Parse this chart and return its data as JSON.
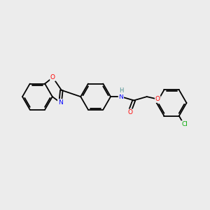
{
  "background_color": "#ececec",
  "bond_color": "#000000",
  "atom_colors": {
    "O": "#ff0000",
    "N": "#0000ff",
    "Cl": "#00aa00",
    "H": "#4a8f8f",
    "C": "#000000"
  },
  "figsize": [
    3.0,
    3.0
  ],
  "dpi": 100,
  "xlim": [
    0,
    10
  ],
  "ylim": [
    0,
    10
  ]
}
